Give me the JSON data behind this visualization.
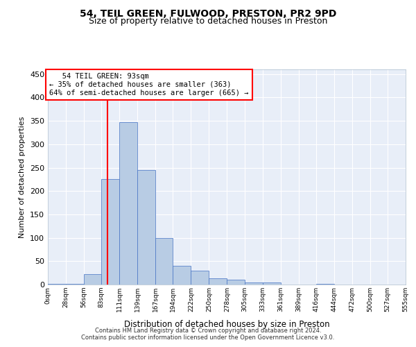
{
  "title1": "54, TEIL GREEN, FULWOOD, PRESTON, PR2 9PD",
  "title2": "Size of property relative to detached houses in Preston",
  "xlabel": "Distribution of detached houses by size in Preston",
  "ylabel": "Number of detached properties",
  "footer1": "Contains HM Land Registry data © Crown copyright and database right 2024.",
  "footer2": "Contains public sector information licensed under the Open Government Licence v3.0.",
  "annotation_line1": "   54 TEIL GREEN: 93sqm",
  "annotation_line2": "← 35% of detached houses are smaller (363)",
  "annotation_line3": "64% of semi-detached houses are larger (665) →",
  "bar_color": "#b8cce4",
  "bar_edge_color": "#4472c4",
  "red_line_x": 93,
  "ylim": [
    0,
    460
  ],
  "yticks": [
    0,
    50,
    100,
    150,
    200,
    250,
    300,
    350,
    400,
    450
  ],
  "bins": [
    0,
    28,
    56,
    83,
    111,
    139,
    167,
    194,
    222,
    250,
    278,
    305,
    333,
    361,
    389,
    416,
    444,
    472,
    500,
    527,
    555
  ],
  "tick_labels": [
    "0sqm",
    "28sqm",
    "56sqm",
    "83sqm",
    "111sqm",
    "139sqm",
    "167sqm",
    "194sqm",
    "222sqm",
    "250sqm",
    "278sqm",
    "305sqm",
    "333sqm",
    "361sqm",
    "389sqm",
    "416sqm",
    "444sqm",
    "472sqm",
    "500sqm",
    "527sqm",
    "555sqm"
  ],
  "values": [
    2,
    2,
    23,
    225,
    347,
    245,
    100,
    40,
    30,
    13,
    10,
    5,
    5,
    0,
    0,
    2,
    0,
    0,
    0,
    0
  ],
  "bg_color": "#e8eef8",
  "grid_color": "#ffffff",
  "title1_fontsize": 10,
  "title2_fontsize": 9
}
